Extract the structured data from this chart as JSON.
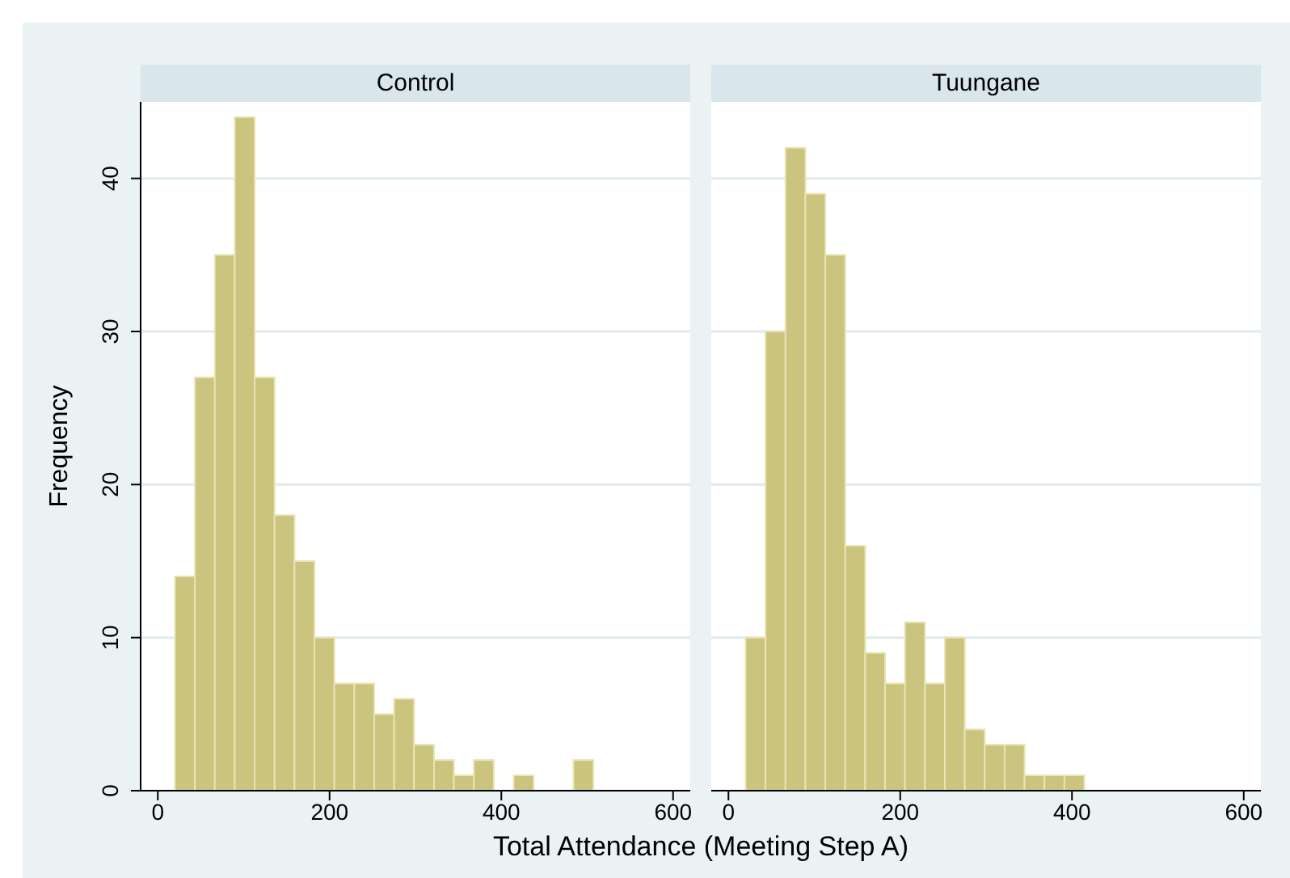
{
  "chart_data": [
    {
      "type": "histogram",
      "title": "Control",
      "xlabel": "Total Attendance (Meeting Step A)",
      "ylabel": "Frequency",
      "color": "#cbc47e",
      "bins": [
        20,
        43.2,
        66.4,
        89.6,
        112.8,
        136,
        159.2,
        182.4,
        205.6,
        228.8,
        252,
        275.2,
        298.4,
        321.6,
        344.8,
        368,
        391.2,
        414.4,
        437.6,
        460.8,
        484,
        507.2
      ],
      "values": [
        14,
        27,
        35,
        44,
        27,
        18,
        15,
        10,
        7,
        7,
        5,
        6,
        3,
        2,
        1,
        2,
        0,
        1,
        0,
        0,
        2
      ],
      "xlim": [
        -20,
        620
      ],
      "xticks": [
        0,
        200,
        400,
        600
      ],
      "ylim": [
        0,
        45
      ],
      "yticks": [
        0,
        10,
        20,
        30,
        40
      ],
      "grid": "y"
    },
    {
      "type": "histogram",
      "title": "Tuungane",
      "color": "#cbc47e",
      "bins": [
        20,
        43.2,
        66.4,
        89.6,
        112.8,
        136,
        159.2,
        182.4,
        205.6,
        228.8,
        252,
        275.2,
        298.4,
        321.6,
        344.8,
        368,
        391.2,
        414.4
      ],
      "values": [
        10,
        30,
        42,
        39,
        35,
        16,
        9,
        7,
        11,
        7,
        10,
        4,
        3,
        3,
        1,
        1,
        1
      ],
      "xlim": [
        -20,
        620
      ],
      "xticks": [
        0,
        200,
        400,
        600
      ],
      "ylim": [
        0,
        45
      ],
      "yticks": [
        0,
        10,
        20,
        30,
        40
      ],
      "grid": "y",
      "tick_labels": "x"
    }
  ]
}
